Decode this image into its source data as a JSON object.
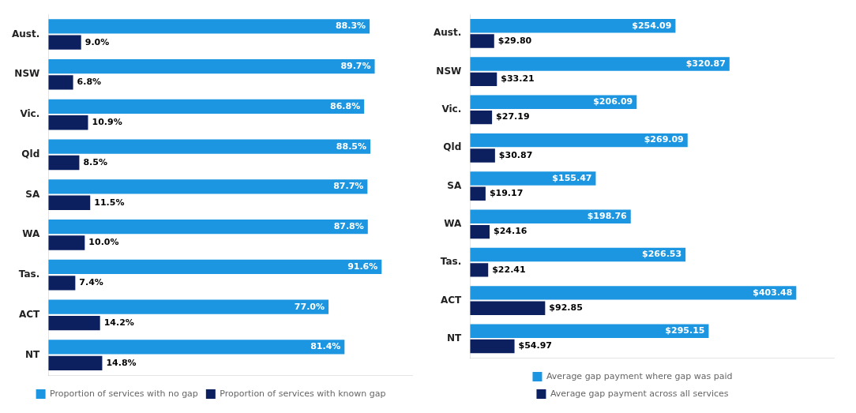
{
  "chart_data": [
    {
      "type": "bar",
      "orientation": "horizontal",
      "categories": [
        "Aust.",
        "NSW",
        "Vic.",
        "Qld",
        "SA",
        "WA",
        "Tas.",
        "ACT",
        "NT"
      ],
      "series": [
        {
          "name": "Proportion of services with no gap",
          "color": "#1C96E0",
          "values": [
            88.3,
            89.7,
            86.8,
            88.5,
            87.7,
            87.8,
            91.6,
            77.0,
            81.4
          ],
          "value_labels": [
            "88.3%",
            "89.7%",
            "86.8%",
            "88.5%",
            "87.7%",
            "87.8%",
            "91.6%",
            "77.0%",
            "81.4%"
          ]
        },
        {
          "name": "Proportion of services with known gap",
          "color": "#0C2060",
          "values": [
            9.0,
            6.8,
            10.9,
            8.5,
            11.5,
            10.0,
            7.4,
            14.2,
            14.8
          ],
          "value_labels": [
            "9.0%",
            "6.8%",
            "10.9%",
            "8.5%",
            "11.5%",
            "10.0%",
            "7.4%",
            "14.2%",
            "14.8%"
          ]
        }
      ],
      "xlim": [
        0,
        100
      ],
      "grid": false,
      "legend": "bottom",
      "data_labels": true,
      "tick_labels": "y"
    },
    {
      "type": "bar",
      "orientation": "horizontal",
      "categories": [
        "Aust.",
        "NSW",
        "Vic.",
        "Qld",
        "SA",
        "WA",
        "Tas.",
        "ACT",
        "NT"
      ],
      "series": [
        {
          "name": "Average gap payment where gap was paid",
          "color": "#1C96E0",
          "values": [
            254.09,
            320.87,
            206.09,
            269.09,
            155.47,
            198.76,
            266.53,
            403.48,
            295.15
          ],
          "value_labels": [
            "$254.09",
            "$320.87",
            "$206.09",
            "$269.09",
            "$155.47",
            "$198.76",
            "$266.53",
            "$403.48",
            "$295.15"
          ]
        },
        {
          "name": "Average gap payment across all services",
          "color": "#0C2060",
          "values": [
            29.8,
            33.21,
            27.19,
            30.87,
            19.17,
            24.16,
            22.41,
            92.85,
            54.97
          ],
          "value_labels": [
            "$29.80",
            "$33.21",
            "$27.19",
            "$30.87",
            "$19.17",
            "$24.16",
            "$22.41",
            "$92.85",
            "$54.97"
          ]
        }
      ],
      "xlim": [
        0,
        450
      ],
      "grid": false,
      "legend": "bottom",
      "data_labels": true,
      "tick_labels": "y"
    }
  ]
}
